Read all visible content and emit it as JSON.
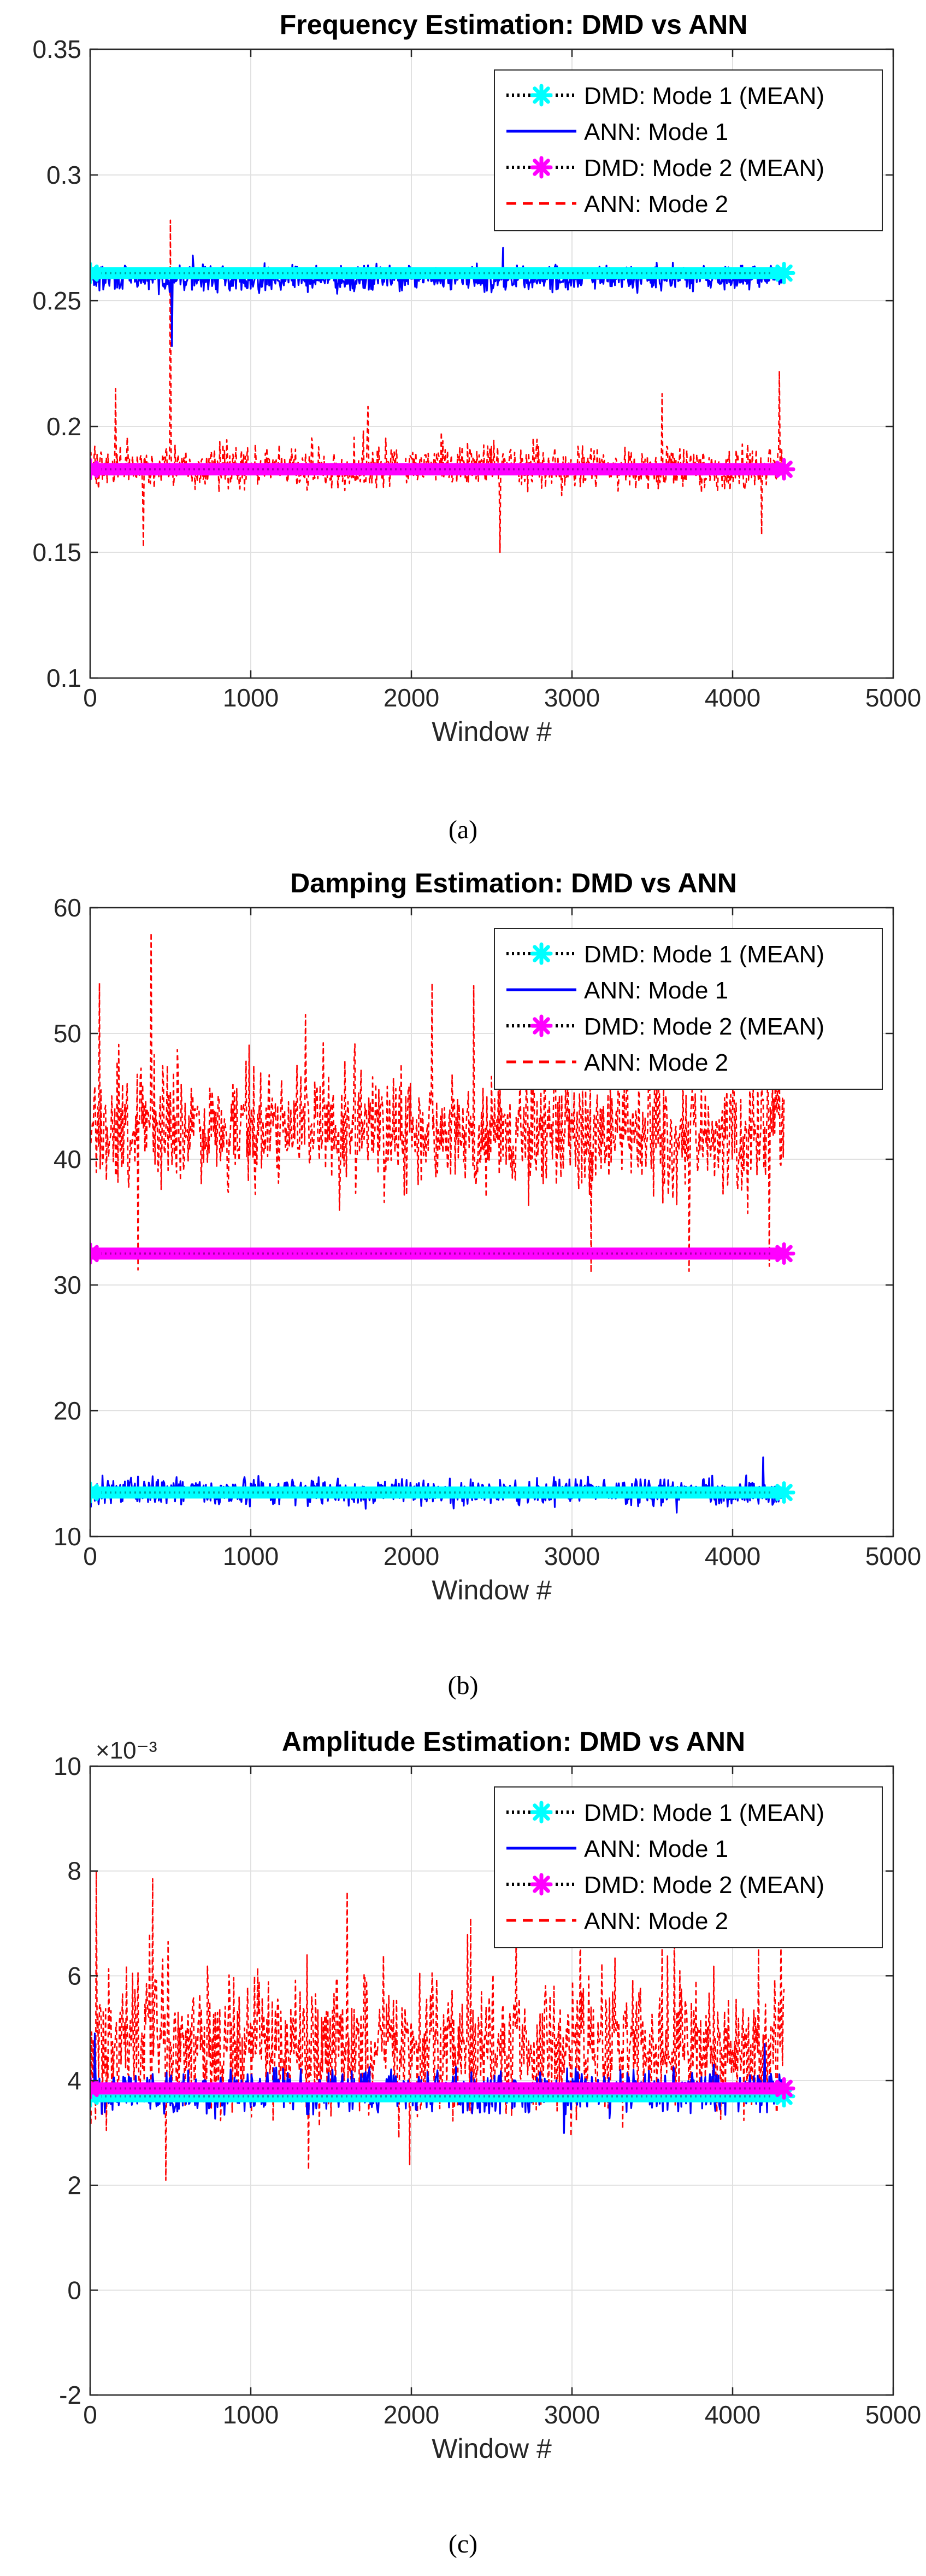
{
  "colors": {
    "mode1_mean": "#00ffff",
    "mode1_ann": "#0000ff",
    "mode2_mean": "#ff00ff",
    "mode2_ann": "#ff0000",
    "grid": "#e1e1e1",
    "axis": "#262626"
  },
  "chart_data": [
    {
      "type": "line",
      "title": "Frequency Estimation: DMD vs ANN",
      "xlabel": "Window #",
      "ylabel": "",
      "xlim": [
        0,
        5000
      ],
      "ylim": [
        0.1,
        0.35
      ],
      "x_ticks": [
        0,
        1000,
        2000,
        3000,
        4000,
        5000
      ],
      "x_tick_labels": [
        "0",
        "1000",
        "2000",
        "3000",
        "4000",
        "5000"
      ],
      "y_ticks": [
        0.1,
        0.15,
        0.2,
        0.25,
        0.3,
        0.35
      ],
      "y_tick_labels": [
        "0.1",
        "0.15",
        "0.2",
        "0.25",
        "0.3",
        "0.35"
      ],
      "exponent_label": "",
      "grid": true,
      "legend_position": "top-right",
      "x_range": [
        0,
        4320
      ],
      "series": [
        {
          "name": "DMD: Mode 1 (MEAN)",
          "style": "mean-marker",
          "color": "#00ffff",
          "mean": 0.261
        },
        {
          "name": "ANN: Mode 1",
          "style": "solid",
          "color": "#0000ff",
          "mean": 0.259,
          "noise": 0.0035,
          "spikes": [
            {
              "x": 510,
              "y": 0.232
            },
            {
              "x": 2570,
              "y": 0.271
            },
            {
              "x": 640,
              "y": 0.268
            }
          ]
        },
        {
          "name": "DMD: Mode 2 (MEAN)",
          "style": "mean-marker",
          "color": "#ff00ff",
          "mean": 0.183
        },
        {
          "name": "ANN: Mode 2",
          "style": "dashed",
          "color": "#ff0000",
          "mean": 0.183,
          "noise": 0.0055,
          "spikes": [
            {
              "x": 500,
              "y": 0.282
            },
            {
              "x": 2550,
              "y": 0.15
            },
            {
              "x": 330,
              "y": 0.152
            },
            {
              "x": 4290,
              "y": 0.222
            },
            {
              "x": 4180,
              "y": 0.157
            },
            {
              "x": 3560,
              "y": 0.213
            },
            {
              "x": 160,
              "y": 0.215
            },
            {
              "x": 1730,
              "y": 0.208
            }
          ]
        }
      ]
    },
    {
      "type": "line",
      "title": "Damping Estimation: DMD vs ANN",
      "xlabel": "Window #",
      "ylabel": "",
      "xlim": [
        0,
        5000
      ],
      "ylim": [
        10,
        60
      ],
      "x_ticks": [
        0,
        1000,
        2000,
        3000,
        4000,
        5000
      ],
      "x_tick_labels": [
        "0",
        "1000",
        "2000",
        "3000",
        "4000",
        "5000"
      ],
      "y_ticks": [
        10,
        20,
        30,
        40,
        50,
        60
      ],
      "y_tick_labels": [
        "10",
        "20",
        "30",
        "40",
        "50",
        "60"
      ],
      "exponent_label": "",
      "grid": true,
      "legend_position": "top-right",
      "x_range": [
        0,
        4320
      ],
      "series": [
        {
          "name": "DMD: Mode 1 (MEAN)",
          "style": "mean-marker",
          "color": "#00ffff",
          "mean": 13.5
        },
        {
          "name": "ANN: Mode 1",
          "style": "solid",
          "color": "#0000ff",
          "mean": 13.5,
          "noise": 0.75,
          "spikes": [
            {
              "x": 4190,
              "y": 16.3
            },
            {
              "x": 3650,
              "y": 11.9
            }
          ]
        },
        {
          "name": "DMD: Mode 2 (MEAN)",
          "style": "mean-marker",
          "color": "#ff00ff",
          "mean": 32.5
        },
        {
          "name": "ANN: Mode 2",
          "style": "dashed",
          "color": "#ff0000",
          "mean": 42,
          "noise": 3.2,
          "spikes": [
            {
              "x": 380,
              "y": 58
            },
            {
              "x": 60,
              "y": 54
            },
            {
              "x": 2130,
              "y": 54
            },
            {
              "x": 2390,
              "y": 53.8
            },
            {
              "x": 2830,
              "y": 53.3
            },
            {
              "x": 3120,
              "y": 31
            },
            {
              "x": 300,
              "y": 31.2
            },
            {
              "x": 3730,
              "y": 31.1
            },
            {
              "x": 1340,
              "y": 51.5
            },
            {
              "x": 4230,
              "y": 31.5
            }
          ]
        }
      ]
    },
    {
      "type": "line",
      "title": "Amplitude Estimation: DMD vs ANN",
      "xlabel": "Window #",
      "ylabel": "",
      "xlim": [
        0,
        5000
      ],
      "ylim": [
        -2,
        10
      ],
      "x_ticks": [
        0,
        1000,
        2000,
        3000,
        4000,
        5000
      ],
      "x_tick_labels": [
        "0",
        "1000",
        "2000",
        "3000",
        "4000",
        "5000"
      ],
      "y_ticks": [
        -2,
        0,
        2,
        4,
        6,
        8,
        10
      ],
      "y_tick_labels": [
        "-2",
        "0",
        "2",
        "4",
        "6",
        "8",
        "10"
      ],
      "exponent_label": "×10⁻³",
      "grid": true,
      "legend_position": "top-right",
      "x_range": [
        0,
        4320
      ],
      "series": [
        {
          "name": "DMD: Mode 1 (MEAN)",
          "style": "mean-marker",
          "color": "#00ffff",
          "mean": 3.7
        },
        {
          "name": "ANN: Mode 1",
          "style": "solid",
          "color": "#0000ff",
          "mean": 3.8,
          "noise": 0.28,
          "spikes": [
            {
              "x": 30,
              "y": 4.9
            },
            {
              "x": 4200,
              "y": 4.7
            },
            {
              "x": 2950,
              "y": 3.0
            }
          ]
        },
        {
          "name": "DMD: Mode 2 (MEAN)",
          "style": "mean-marker",
          "color": "#ff00ff",
          "mean": 3.85
        },
        {
          "name": "ANN: Mode 2",
          "style": "dashed",
          "color": "#ff0000",
          "mean": 4.55,
          "noise": 0.85,
          "spikes": [
            {
              "x": 40,
              "y": 8.0
            },
            {
              "x": 390,
              "y": 7.85
            },
            {
              "x": 1600,
              "y": 7.6
            },
            {
              "x": 470,
              "y": 2.1
            },
            {
              "x": 1360,
              "y": 2.3
            },
            {
              "x": 3050,
              "y": 7.3
            },
            {
              "x": 2370,
              "y": 7.1
            },
            {
              "x": 3640,
              "y": 7.2
            },
            {
              "x": 4300,
              "y": 6.6
            },
            {
              "x": 1990,
              "y": 2.4
            }
          ]
        }
      ]
    }
  ],
  "captions": [
    "(a)",
    "(b)",
    "(c)"
  ]
}
